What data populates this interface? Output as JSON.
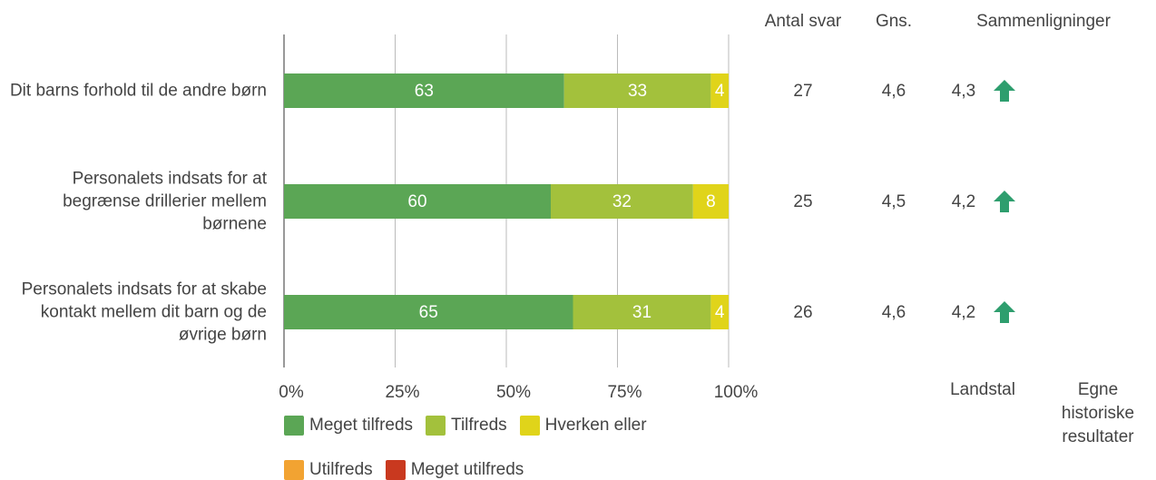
{
  "chart_data": {
    "type": "bar",
    "orientation": "horizontal",
    "stacked": true,
    "categories": [
      "Dit barns forhold til de andre børn",
      "Personalets indsats for at begrænse drillerier mellem børnene",
      "Personalets indsats for at skabe kontakt mellem dit barn og de øvrige børn"
    ],
    "series": [
      {
        "name": "Meget tilfreds",
        "color": "#5ba655",
        "values": [
          63,
          60,
          65
        ]
      },
      {
        "name": "Tilfreds",
        "color": "#a3c13c",
        "values": [
          33,
          32,
          31
        ]
      },
      {
        "name": "Hverken eller",
        "color": "#e0d41a",
        "values": [
          4,
          8,
          4
        ]
      },
      {
        "name": "Utilfreds",
        "color": "#f2a332",
        "values": [
          0,
          0,
          0
        ]
      },
      {
        "name": "Meget utilfreds",
        "color": "#c9391f",
        "values": [
          0,
          0,
          0
        ]
      }
    ],
    "xlim": [
      0,
      100
    ],
    "xticks": [
      {
        "value": 0,
        "label": "0%"
      },
      {
        "value": 25,
        "label": "25%"
      },
      {
        "value": 50,
        "label": "50%"
      },
      {
        "value": 75,
        "label": "75%"
      },
      {
        "value": 100,
        "label": "100%"
      }
    ],
    "grid": true,
    "legend": "bottom",
    "columns": [
      {
        "header": "Antal svar",
        "values": [
          27,
          25,
          26
        ]
      },
      {
        "header": "Gns.",
        "values": [
          4.6,
          4.5,
          4.6
        ],
        "value_labels": [
          "4,6",
          "4,5",
          "4,6"
        ]
      }
    ],
    "comparisons": {
      "header": "Sammenligninger",
      "columns": [
        {
          "name": "Landstal",
          "values": [
            4.3,
            4.2,
            4.2
          ],
          "value_labels": [
            "4,3",
            "4,2",
            "4,2"
          ],
          "trend": [
            "up",
            "up",
            "up"
          ],
          "trend_color": "#2e9e6e"
        },
        {
          "name": "Egne historiske resultater"
        }
      ]
    }
  }
}
